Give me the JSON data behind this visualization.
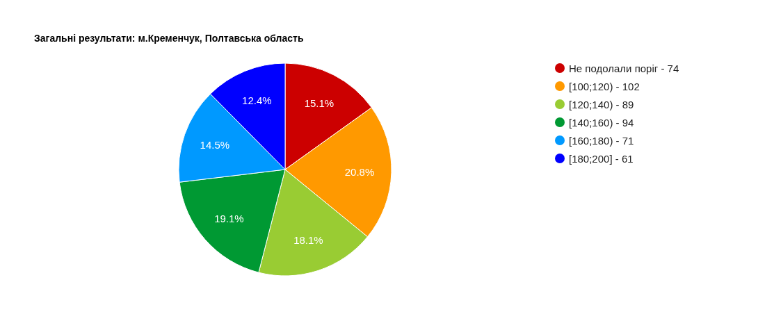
{
  "chart_data": {
    "type": "pie",
    "title": "Загальні результати: м.Кременчук, Полтавська область",
    "categories": [
      "Не подолали поріг - 74",
      "[100;120) - 102",
      "[120;140) - 89",
      "[140;160) - 94",
      "[160;180) - 71",
      "[180;200] - 61"
    ],
    "values": [
      15.1,
      20.8,
      18.1,
      19.1,
      14.5,
      12.4
    ],
    "colors": [
      "#cc0000",
      "#ff9900",
      "#99cc33",
      "#009933",
      "#0099ff",
      "#0000ff"
    ],
    "value_labels": [
      "15.1%",
      "20.8%",
      "18.1%",
      "19.1%",
      "14.5%",
      "12.4%"
    ],
    "legend": "right"
  }
}
